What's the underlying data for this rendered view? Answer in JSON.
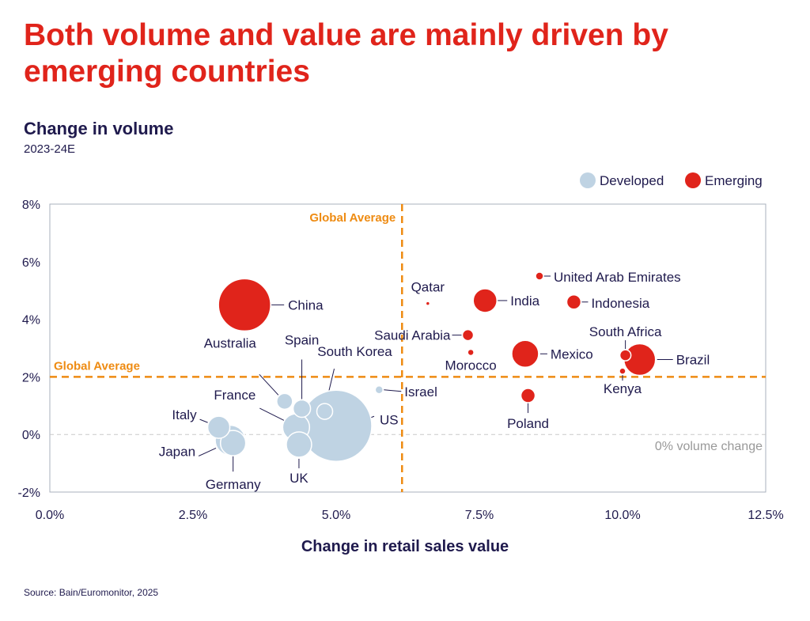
{
  "header": {
    "title": "Both volume and value are mainly driven by emerging countries",
    "subtitle": "Change in volume",
    "period": "2023-24E"
  },
  "footer": {
    "source": "Source: Bain/Euromonitor, 2025"
  },
  "colors": {
    "developed": "#bfd3e3",
    "emerging": "#e0241b",
    "average": "#ee8b12",
    "title": "#e0241b",
    "text": "#1f1a4d"
  },
  "chart_data": {
    "type": "scatter",
    "title": "Both volume and value are mainly driven by emerging countries",
    "subtitle": "Change in volume",
    "xlabel": "Change in retail sales value",
    "ylabel": "Change in volume",
    "xlim": [
      0,
      12.5
    ],
    "ylim": [
      -2,
      8
    ],
    "x_ticks": [
      "0.0%",
      "2.5%",
      "5.0%",
      "7.5%",
      "10.0%",
      "12.5%"
    ],
    "y_ticks": [
      "8%",
      "6%",
      "4%",
      "2%",
      "0%",
      "-2%"
    ],
    "legend": {
      "position": "top-right",
      "entries": [
        "Developed",
        "Emerging"
      ]
    },
    "global_average": {
      "x": 6.15,
      "y": 2.0,
      "label": "Global Average"
    },
    "zero_line_label": "0% volume change",
    "points": [
      {
        "name": "China",
        "group": "Emerging",
        "x": 3.4,
        "y": 4.5,
        "size": 33,
        "label": "China"
      },
      {
        "name": "Qatar",
        "group": "Emerging",
        "x": 6.6,
        "y": 4.55,
        "size": 2.5,
        "label": "Qatar"
      },
      {
        "name": "India",
        "group": "Emerging",
        "x": 7.6,
        "y": 4.65,
        "size": 15,
        "label": "India"
      },
      {
        "name": "United Arab Emirates",
        "group": "Emerging",
        "x": 8.55,
        "y": 5.5,
        "size": 5,
        "label": "United Arab Emirates"
      },
      {
        "name": "Indonesia",
        "group": "Emerging",
        "x": 9.15,
        "y": 4.6,
        "size": 9,
        "label": "Indonesia"
      },
      {
        "name": "Saudi Arabia",
        "group": "Emerging",
        "x": 7.3,
        "y": 3.45,
        "size": 7,
        "label": "Saudi Arabia"
      },
      {
        "name": "Morocco",
        "group": "Emerging",
        "x": 7.35,
        "y": 2.85,
        "size": 4,
        "label": "Morocco"
      },
      {
        "name": "Mexico",
        "group": "Emerging",
        "x": 8.3,
        "y": 2.8,
        "size": 17,
        "label": "Mexico"
      },
      {
        "name": "South Africa",
        "group": "Emerging",
        "x": 10.05,
        "y": 2.75,
        "size": 7,
        "label": "South Africa"
      },
      {
        "name": "Brazil",
        "group": "Emerging",
        "x": 10.3,
        "y": 2.6,
        "size": 20,
        "label": "Brazil"
      },
      {
        "name": "Kenya",
        "group": "Emerging",
        "x": 10.0,
        "y": 2.2,
        "size": 4,
        "label": "Kenya"
      },
      {
        "name": "Poland",
        "group": "Emerging",
        "x": 8.35,
        "y": 1.35,
        "size": 9,
        "label": "Poland"
      },
      {
        "name": "Israel",
        "group": "Developed",
        "x": 5.75,
        "y": 1.55,
        "size": 5,
        "label": "Israel"
      },
      {
        "name": "US",
        "group": "Developed",
        "x": 5.0,
        "y": 0.3,
        "size": 45,
        "label": "US"
      },
      {
        "name": "South Korea",
        "group": "Developed",
        "x": 4.8,
        "y": 0.8,
        "size": 10,
        "label": "South Korea"
      },
      {
        "name": "Spain",
        "group": "Developed",
        "x": 4.4,
        "y": 0.9,
        "size": 11,
        "label": "Spain"
      },
      {
        "name": "Australia",
        "group": "Developed",
        "x": 4.1,
        "y": 1.15,
        "size": 10,
        "label": "Australia"
      },
      {
        "name": "France",
        "group": "Developed",
        "x": 4.3,
        "y": 0.25,
        "size": 17,
        "label": "France"
      },
      {
        "name": "UK",
        "group": "Developed",
        "x": 4.35,
        "y": -0.35,
        "size": 16,
        "label": "UK"
      },
      {
        "name": "Italy",
        "group": "Developed",
        "x": 2.95,
        "y": 0.25,
        "size": 14,
        "label": "Italy"
      },
      {
        "name": "Japan",
        "group": "Developed",
        "x": 3.15,
        "y": -0.2,
        "size": 19,
        "label": "Japan"
      },
      {
        "name": "Germany",
        "group": "Developed",
        "x": 3.2,
        "y": -0.3,
        "size": 16,
        "label": "Germany"
      }
    ]
  }
}
